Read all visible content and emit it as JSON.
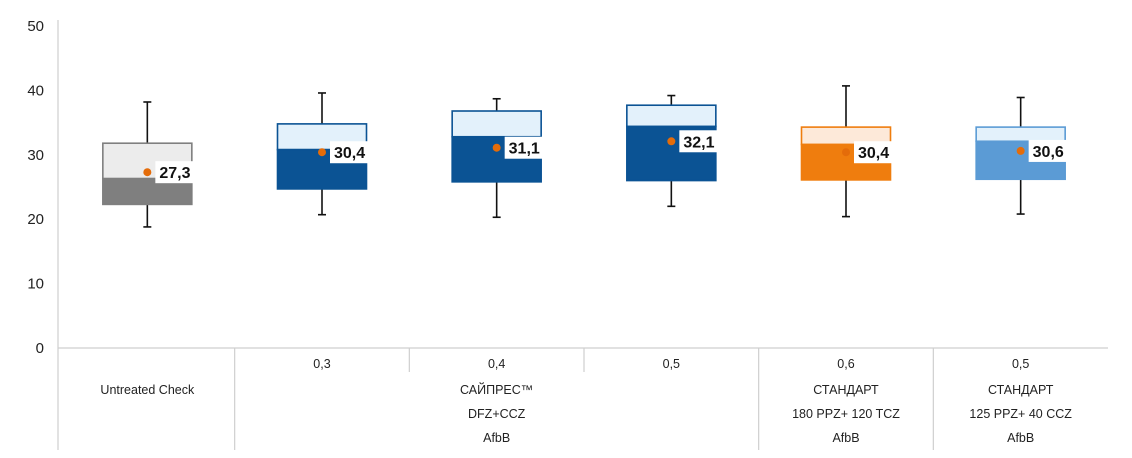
{
  "chart_data": {
    "type": "box",
    "ylim": [
      0,
      50
    ],
    "yticks": [
      "0",
      "10",
      "20",
      "30",
      "40",
      "50"
    ],
    "categories": [
      {
        "dose": "",
        "product": "Untreated Check",
        "min": 18.8,
        "q1": 22.3,
        "median": 26.3,
        "q3": 31.8,
        "max": 38.2,
        "mean": 27.3,
        "mean_label": "27,3",
        "color": "#7f7f7f",
        "light": "#ececec"
      },
      {
        "dose": "0,3",
        "product": "",
        "min": 20.7,
        "q1": 24.7,
        "median": 30.8,
        "q3": 34.8,
        "max": 39.6,
        "mean": 30.4,
        "mean_label": "30,4",
        "color": "#0b5394",
        "light": "#e3f1fb"
      },
      {
        "dose": "0,4",
        "product": "",
        "min": 20.3,
        "q1": 25.8,
        "median": 32.8,
        "q3": 36.8,
        "max": 38.7,
        "mean": 31.1,
        "mean_label": "31,1",
        "color": "#0b5394",
        "light": "#e3f1fb"
      },
      {
        "dose": "0,5",
        "product": "",
        "min": 22.0,
        "q1": 26.0,
        "median": 34.4,
        "q3": 37.7,
        "max": 39.2,
        "mean": 32.1,
        "mean_label": "32,1",
        "color": "#0b5394",
        "light": "#e3f1fb"
      },
      {
        "dose": "0,6",
        "product": "",
        "min": 20.4,
        "q1": 26.1,
        "median": 31.6,
        "q3": 34.3,
        "max": 40.7,
        "mean": 30.4,
        "mean_label": "30,4",
        "color": "#ef7d0e",
        "light": "#fde9d9"
      },
      {
        "dose": "0,5",
        "product": "",
        "min": 20.8,
        "q1": 26.2,
        "median": 32.1,
        "q3": 34.3,
        "max": 38.9,
        "mean": 30.6,
        "mean_label": "30,6",
        "color": "#5b9bd5",
        "light": "#e3f1fb"
      }
    ],
    "groups": [
      {
        "from": 1,
        "to": 3,
        "lines": [
          "САЙПРЕС™",
          "DFZ+CCZ",
          "AfbB"
        ]
      },
      {
        "from": 4,
        "to": 4,
        "lines": [
          "СТАНДАРТ",
          "180 PPZ+ 120 TCZ",
          "AfbB"
        ]
      },
      {
        "from": 5,
        "to": 5,
        "lines": [
          "СТАНДАРТ",
          "125 PPZ+ 40 CCZ",
          "AfbB"
        ]
      }
    ],
    "mean_marker_color": "#e46c0a"
  }
}
